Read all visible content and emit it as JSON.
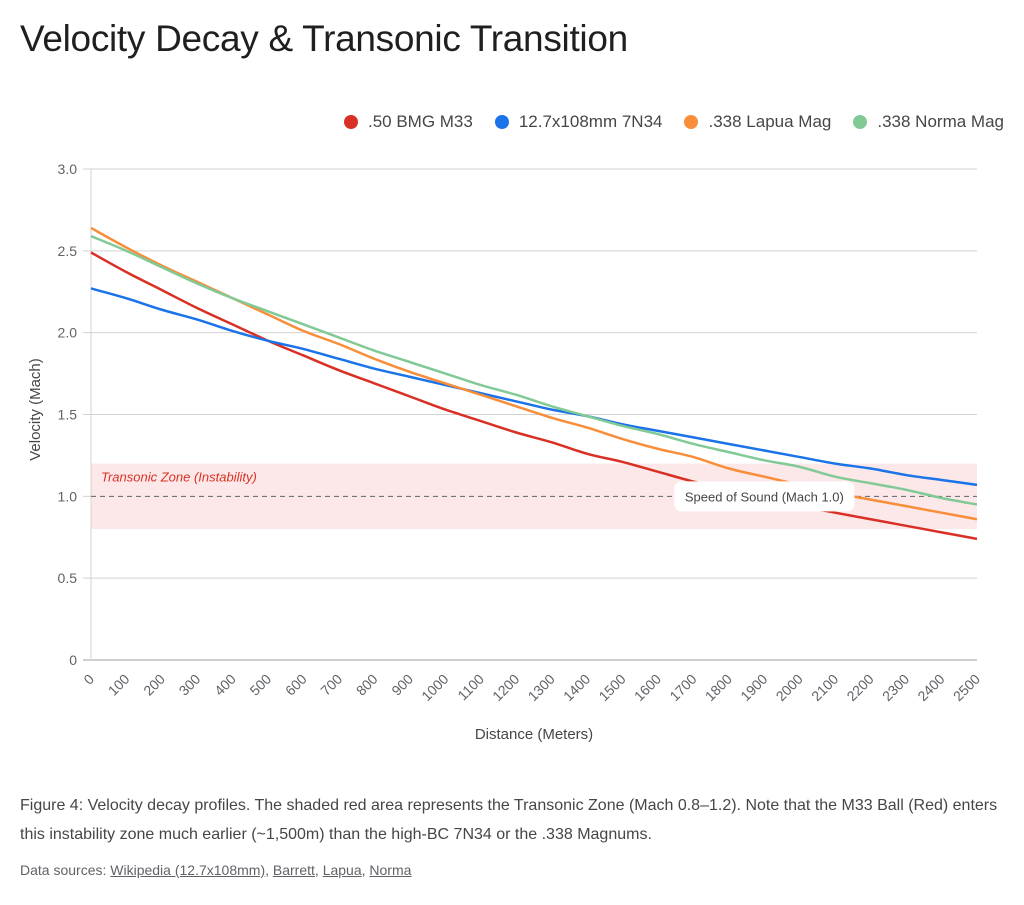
{
  "title": "Velocity Decay & Transonic Transition",
  "legend": [
    {
      "label": ".50 BMG M33",
      "color": "#d93025"
    },
    {
      "label": "12.7x108mm 7N34",
      "color": "#1a73e8"
    },
    {
      "label": ".338 Lapua Mag",
      "color": "#f98e3a"
    },
    {
      "label": ".338 Norma Mag",
      "color": "#81c995"
    }
  ],
  "chart_data": {
    "type": "line",
    "title": "Velocity Decay & Transonic Transition",
    "xlabel": "Distance (Meters)",
    "ylabel": "Velocity (Mach)",
    "ylim": [
      0,
      3.0
    ],
    "yticks": [
      "0",
      "0.5",
      "1.0",
      "1.5",
      "2.0",
      "2.5",
      "3.0"
    ],
    "ytick_values": [
      0,
      0.5,
      1.0,
      1.5,
      2.0,
      2.5,
      3.0
    ],
    "x": [
      0,
      100,
      200,
      300,
      400,
      500,
      600,
      700,
      800,
      900,
      1000,
      1100,
      1200,
      1300,
      1400,
      1500,
      1600,
      1700,
      1800,
      1900,
      2000,
      2100,
      2200,
      2300,
      2400,
      2500
    ],
    "xtick_labels": [
      "0",
      "100",
      "200",
      "300",
      "400",
      "500",
      "600",
      "700",
      "800",
      "900",
      "1000",
      "1100",
      "1200",
      "1300",
      "1400",
      "1500",
      "1600",
      "1700",
      "1800",
      "1900",
      "2000",
      "2100",
      "2200",
      "2300",
      "2400",
      "2500"
    ],
    "grid": true,
    "legend_position": "top-right",
    "series": [
      {
        "name": ".50 BMG M33",
        "color": "#d93025",
        "values": [
          2.49,
          2.37,
          2.26,
          2.15,
          2.05,
          1.95,
          1.86,
          1.77,
          1.69,
          1.61,
          1.53,
          1.46,
          1.39,
          1.33,
          1.26,
          1.21,
          1.15,
          1.09,
          1.04,
          0.99,
          0.94,
          0.9,
          0.86,
          0.82,
          0.78,
          0.74
        ]
      },
      {
        "name": "12.7x108mm 7N34",
        "color": "#1a73e8",
        "values": [
          2.27,
          2.21,
          2.14,
          2.08,
          2.01,
          1.95,
          1.9,
          1.84,
          1.78,
          1.73,
          1.68,
          1.63,
          1.58,
          1.53,
          1.49,
          1.44,
          1.4,
          1.36,
          1.32,
          1.28,
          1.24,
          1.2,
          1.17,
          1.13,
          1.1,
          1.07
        ]
      },
      {
        "name": ".338 Lapua Mag",
        "color": "#f98e3a",
        "values": [
          2.64,
          2.52,
          2.41,
          2.31,
          2.21,
          2.11,
          2.01,
          1.93,
          1.84,
          1.76,
          1.69,
          1.62,
          1.55,
          1.48,
          1.42,
          1.35,
          1.29,
          1.24,
          1.17,
          1.12,
          1.07,
          1.02,
          0.98,
          0.94,
          0.9,
          0.86
        ]
      },
      {
        "name": ".338 Norma Mag",
        "color": "#81c995",
        "values": [
          2.59,
          2.5,
          2.4,
          2.3,
          2.21,
          2.13,
          2.05,
          1.97,
          1.89,
          1.82,
          1.75,
          1.68,
          1.62,
          1.55,
          1.49,
          1.43,
          1.38,
          1.32,
          1.27,
          1.22,
          1.18,
          1.12,
          1.08,
          1.04,
          0.99,
          0.95
        ]
      }
    ],
    "annotations": {
      "zone": {
        "label": "Transonic Zone (Instability)",
        "ymin": 0.8,
        "ymax": 1.2,
        "fill": "#fce8e8",
        "label_color": "#d93025"
      },
      "reference_line": {
        "label": "Speed of Sound (Mach 1.0)",
        "y": 1.0,
        "at_x": 1900
      }
    }
  },
  "caption": "Figure 4: Velocity decay profiles. The shaded red area represents the Transonic Zone (Mach 0.8–1.2). Note that the M33 Ball (Red) enters this instability zone much earlier (~1,500m) than the high-BC 7N34 or the .338 Magnums.",
  "sources": {
    "prefix": "Data sources: ",
    "links": [
      {
        "label": "Wikipedia (12.7x108mm)"
      },
      {
        "label": "Barrett"
      },
      {
        "label": "Lapua"
      },
      {
        "label": "Norma"
      }
    ]
  }
}
